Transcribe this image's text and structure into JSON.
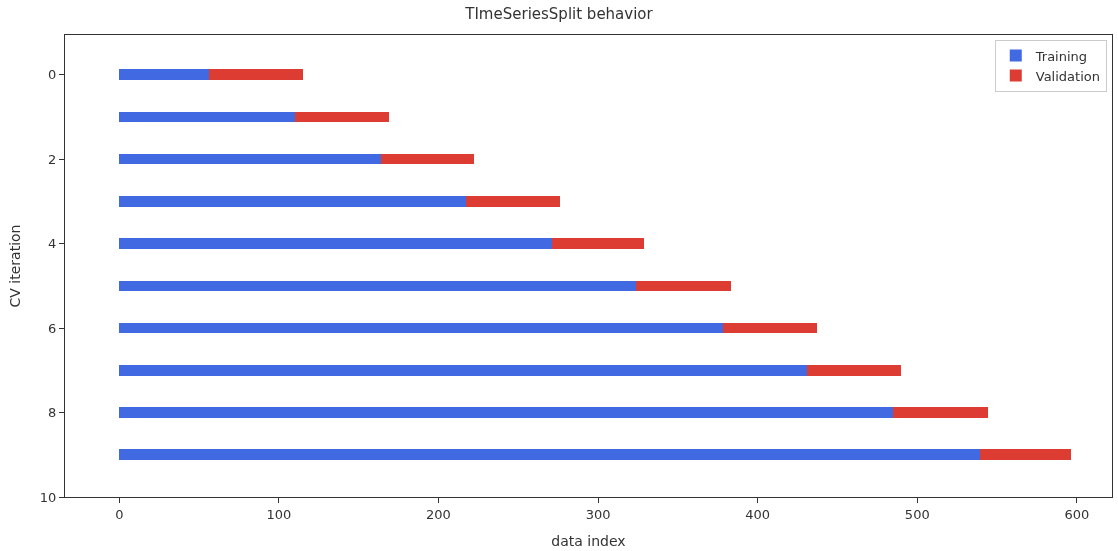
{
  "chart_data": {
    "type": "bar",
    "orientation": "horizontal",
    "stacked": true,
    "title": "TImeSeriesSplit behavior",
    "xlabel": "data index",
    "ylabel": "CV iteration",
    "x": [
      0,
      1,
      2,
      3,
      4,
      5,
      6,
      7,
      8,
      9
    ],
    "series": [
      {
        "name": "Training",
        "color": "#4169e1",
        "values": [
          56,
          110,
          164,
          217,
          271,
          324,
          378,
          431,
          485,
          539
        ]
      },
      {
        "name": "Validation",
        "color": "#dc3c32",
        "values": [
          59,
          59,
          58,
          59,
          58,
          59,
          59,
          59,
          59,
          57
        ]
      }
    ],
    "xlim": [
      -34,
      622
    ],
    "xticks": [
      0,
      100,
      200,
      300,
      400,
      500,
      600
    ],
    "ylim": [
      10,
      -0.94
    ],
    "yticks": [
      0,
      2,
      4,
      6,
      8,
      10
    ],
    "legend": "top right"
  }
}
